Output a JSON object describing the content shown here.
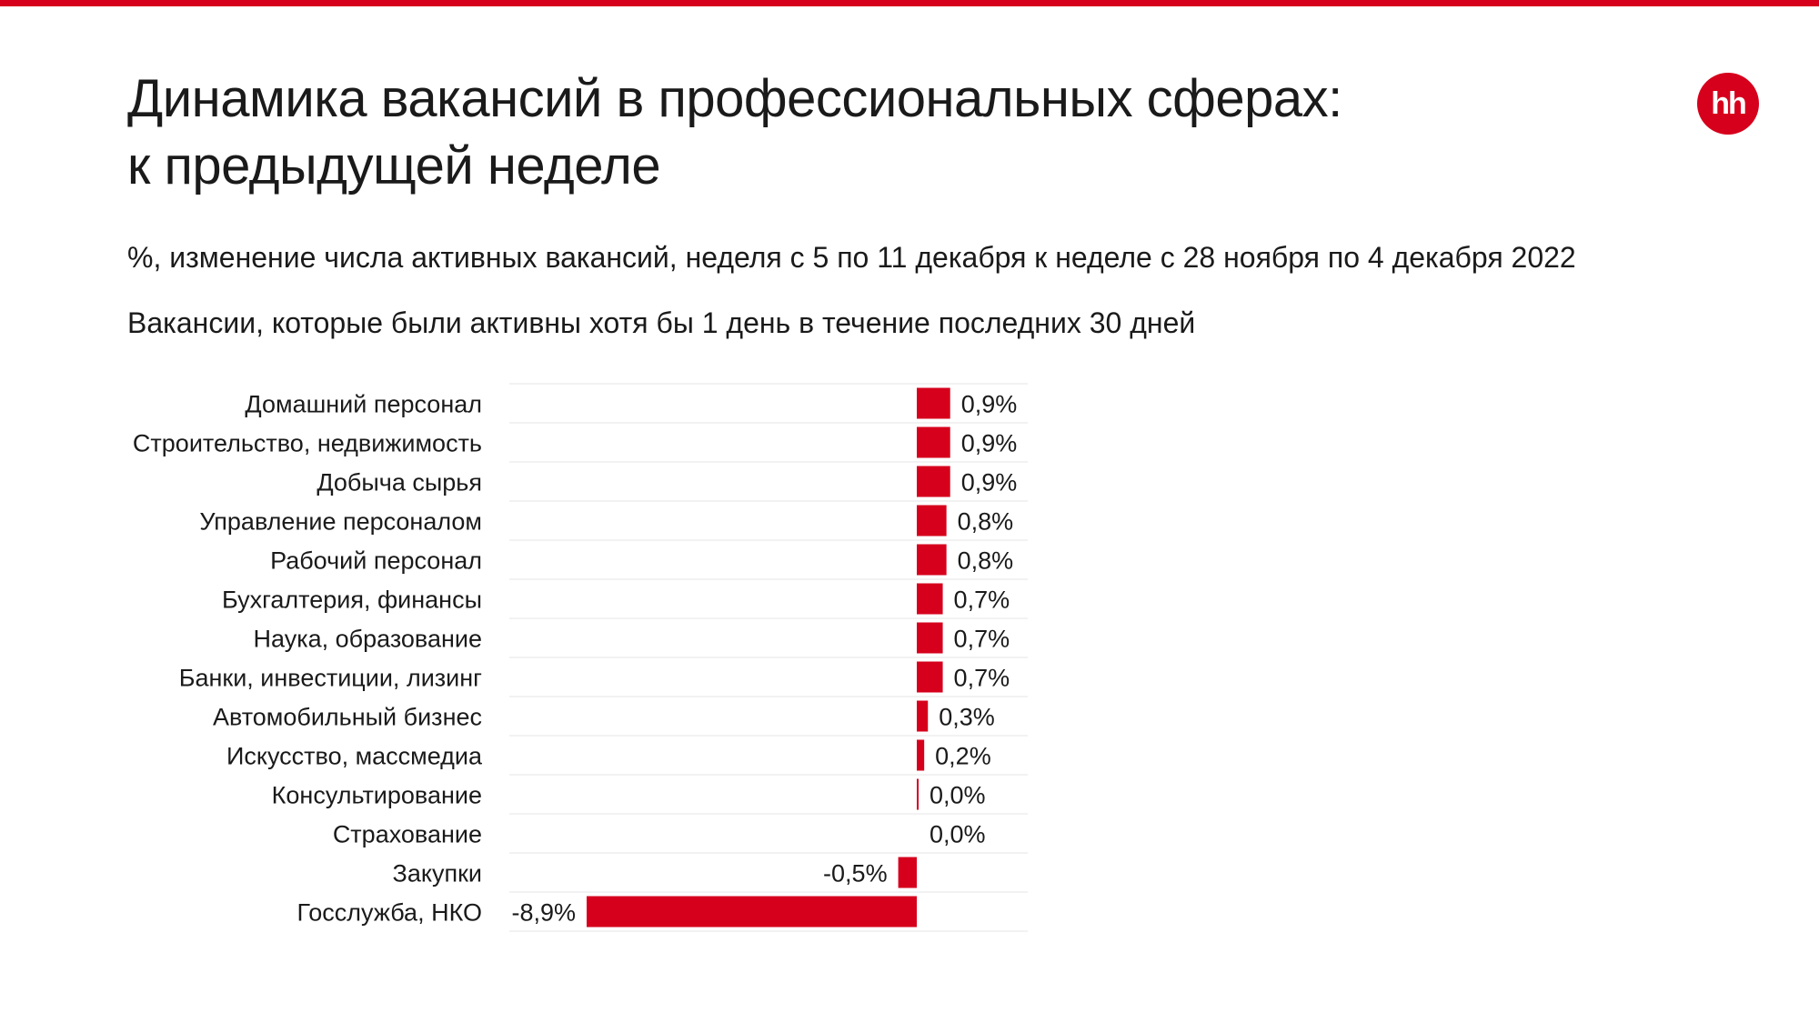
{
  "brand": {
    "logo_text": "hh",
    "accent": "#d6001c"
  },
  "header": {
    "title_line1": "Динамика вакансий в профессиональных сферах:",
    "title_line2": "к предыдущей неделе",
    "subtitle": "%, изменение числа активных вакансий, неделя с 5 по 11 декабря к неделе с 28 ноября по 4 декабря 2022",
    "note": "Вакансии, которые были активны хотя бы 1 день в течение последних 30 дней"
  },
  "chart_data": {
    "type": "bar",
    "orientation": "horizontal",
    "bar_color": "#d6001c",
    "categories": [
      "Домашний персонал",
      "Строительство, недвижимость",
      "Добыча сырья",
      "Управление персоналом",
      "Рабочий персонал",
      "Бухгалтерия, финансы",
      "Наука, образование",
      "Банки, инвестиции, лизинг",
      "Автомобильный бизнес",
      "Искусство, массмедиа",
      "Консультирование",
      "Страхование",
      "Закупки",
      "Госслужба, НКО"
    ],
    "values": [
      0.9,
      0.9,
      0.9,
      0.8,
      0.8,
      0.7,
      0.7,
      0.7,
      0.3,
      0.2,
      0.02,
      0.0,
      -0.5,
      -8.9
    ],
    "value_labels": [
      "0,9%",
      "0,9%",
      "0,9%",
      "0,8%",
      "0,8%",
      "0,7%",
      "0,7%",
      "0,7%",
      "0,3%",
      "0,2%",
      "0,0%",
      "0,0%",
      "-0,5%",
      "-8,9%"
    ],
    "xlim": [
      -11,
      3
    ],
    "grid": true
  }
}
